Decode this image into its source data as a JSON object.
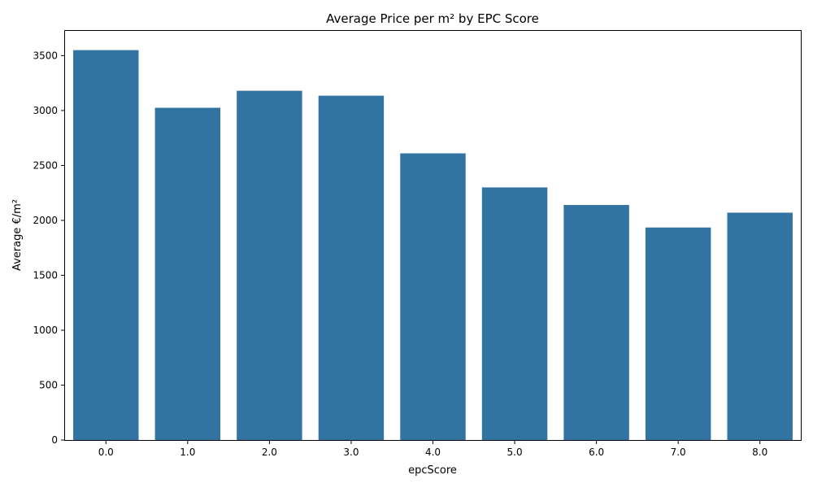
{
  "chart_data": {
    "type": "bar",
    "title": "Average Price per m² by EPC Score",
    "xlabel": "epcScore",
    "ylabel": "Average €/m²",
    "categories": [
      "0.0",
      "1.0",
      "2.0",
      "3.0",
      "4.0",
      "5.0",
      "6.0",
      "7.0",
      "8.0"
    ],
    "values": [
      3550,
      3025,
      3180,
      3135,
      2610,
      2300,
      2140,
      1935,
      2070
    ],
    "ylim": [
      0,
      3725
    ],
    "yticks": [
      0,
      500,
      1000,
      1500,
      2000,
      2500,
      3000,
      3500
    ],
    "grid": false,
    "colors": {
      "bar": "#3274a1"
    }
  }
}
